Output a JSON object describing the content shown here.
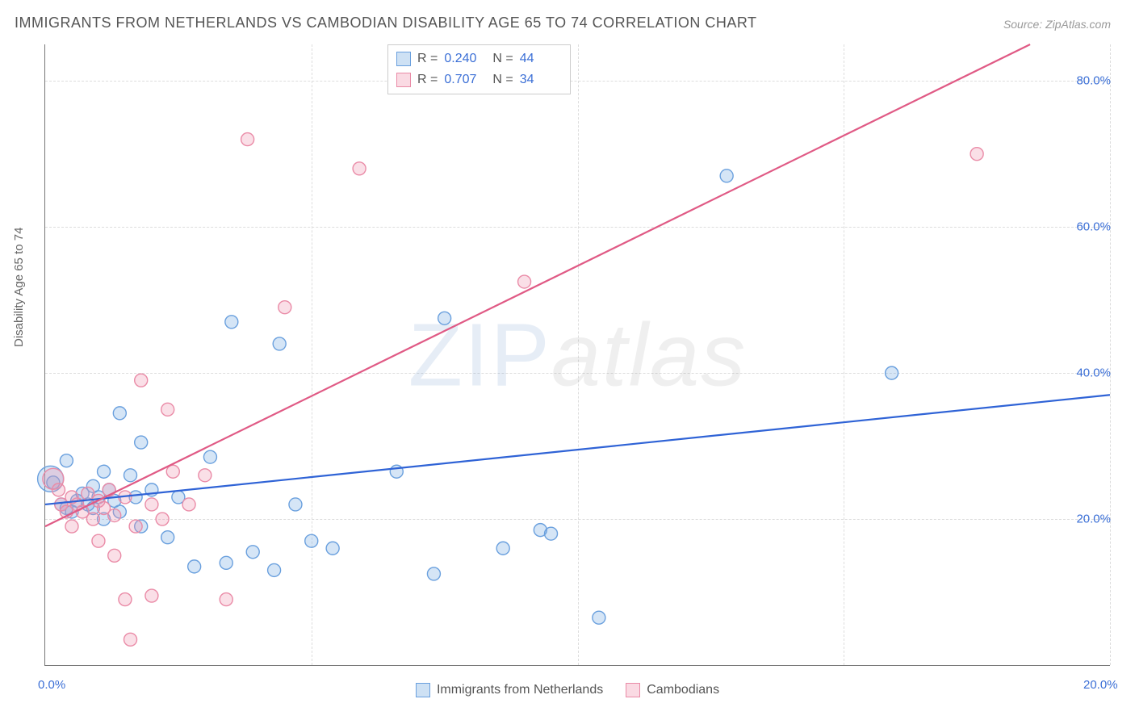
{
  "title": "IMMIGRANTS FROM NETHERLANDS VS CAMBODIAN DISABILITY AGE 65 TO 74 CORRELATION CHART",
  "source": "Source: ZipAtlas.com",
  "y_axis_label": "Disability Age 65 to 74",
  "watermark_a": "ZIP",
  "watermark_b": "atlas",
  "chart": {
    "type": "scatter",
    "xlim": [
      0,
      20
    ],
    "ylim": [
      0,
      85
    ],
    "x_ticks": [
      0,
      20
    ],
    "x_tick_labels": [
      "0.0%",
      "20.0%"
    ],
    "y_ticks": [
      20,
      40,
      60,
      80
    ],
    "y_tick_labels": [
      "20.0%",
      "40.0%",
      "60.0%",
      "80.0%"
    ],
    "x_vgrid": [
      5,
      10,
      15,
      20
    ],
    "background_color": "#ffffff",
    "grid_color": "#dddddd",
    "axis_color": "#777777",
    "marker_radius": 8,
    "marker_stroke_width": 1.4,
    "line_width": 2.2,
    "series": [
      {
        "name": "Immigrants from Netherlands",
        "fill": "rgba(116,168,224,0.30)",
        "stroke": "#6aa0de",
        "line_color": "#2f63d6",
        "r": 0.24,
        "n": 44,
        "fit_line": {
          "x1": 0,
          "y1": 22,
          "x2": 20,
          "y2": 37
        },
        "points": [
          {
            "x": 0.1,
            "y": 25.5,
            "r": 16
          },
          {
            "x": 0.15,
            "y": 25.0
          },
          {
            "x": 0.3,
            "y": 22.0
          },
          {
            "x": 0.4,
            "y": 21.5
          },
          {
            "x": 0.4,
            "y": 28.0
          },
          {
            "x": 0.5,
            "y": 21.0
          },
          {
            "x": 0.6,
            "y": 22.5
          },
          {
            "x": 0.7,
            "y": 23.5
          },
          {
            "x": 0.8,
            "y": 22.0
          },
          {
            "x": 0.9,
            "y": 21.5
          },
          {
            "x": 0.9,
            "y": 24.5
          },
          {
            "x": 1.0,
            "y": 23.0
          },
          {
            "x": 1.1,
            "y": 20.0
          },
          {
            "x": 1.1,
            "y": 26.5
          },
          {
            "x": 1.2,
            "y": 24.0
          },
          {
            "x": 1.3,
            "y": 22.5
          },
          {
            "x": 1.4,
            "y": 21.0
          },
          {
            "x": 1.4,
            "y": 34.5
          },
          {
            "x": 1.6,
            "y": 26.0
          },
          {
            "x": 1.7,
            "y": 23.0
          },
          {
            "x": 1.8,
            "y": 19.0
          },
          {
            "x": 1.8,
            "y": 30.5
          },
          {
            "x": 2.0,
            "y": 24.0
          },
          {
            "x": 2.3,
            "y": 17.5
          },
          {
            "x": 2.5,
            "y": 23.0
          },
          {
            "x": 2.8,
            "y": 13.5
          },
          {
            "x": 3.1,
            "y": 28.5
          },
          {
            "x": 3.4,
            "y": 14.0
          },
          {
            "x": 3.5,
            "y": 47.0
          },
          {
            "x": 3.9,
            "y": 15.5
          },
          {
            "x": 4.3,
            "y": 13.0
          },
          {
            "x": 4.4,
            "y": 44.0
          },
          {
            "x": 4.7,
            "y": 22.0
          },
          {
            "x": 5.0,
            "y": 17.0
          },
          {
            "x": 5.4,
            "y": 16.0
          },
          {
            "x": 6.6,
            "y": 26.5
          },
          {
            "x": 7.3,
            "y": 12.5
          },
          {
            "x": 7.5,
            "y": 47.5
          },
          {
            "x": 8.6,
            "y": 16.0
          },
          {
            "x": 9.3,
            "y": 18.5
          },
          {
            "x": 9.5,
            "y": 18.0
          },
          {
            "x": 10.4,
            "y": 6.5
          },
          {
            "x": 12.8,
            "y": 67.0
          },
          {
            "x": 15.9,
            "y": 40.0
          }
        ]
      },
      {
        "name": "Cambodians",
        "fill": "rgba(240,150,175,0.30)",
        "stroke": "#ea8ba7",
        "line_color": "#e05a85",
        "r": 0.707,
        "n": 34,
        "fit_line": {
          "x1": 0,
          "y1": 19,
          "x2": 18.5,
          "y2": 85
        },
        "points": [
          {
            "x": 0.15,
            "y": 25.5,
            "r": 13
          },
          {
            "x": 0.25,
            "y": 24.0
          },
          {
            "x": 0.3,
            "y": 22.0
          },
          {
            "x": 0.4,
            "y": 21.0
          },
          {
            "x": 0.5,
            "y": 19.0
          },
          {
            "x": 0.5,
            "y": 23.0
          },
          {
            "x": 0.6,
            "y": 22.0
          },
          {
            "x": 0.7,
            "y": 21.0
          },
          {
            "x": 0.8,
            "y": 23.5
          },
          {
            "x": 0.9,
            "y": 20.0
          },
          {
            "x": 1.0,
            "y": 22.5
          },
          {
            "x": 1.0,
            "y": 17.0
          },
          {
            "x": 1.1,
            "y": 21.5
          },
          {
            "x": 1.2,
            "y": 24.0
          },
          {
            "x": 1.3,
            "y": 20.5
          },
          {
            "x": 1.3,
            "y": 15.0
          },
          {
            "x": 1.5,
            "y": 23.0
          },
          {
            "x": 1.5,
            "y": 9.0
          },
          {
            "x": 1.6,
            "y": 3.5
          },
          {
            "x": 1.7,
            "y": 19.0
          },
          {
            "x": 1.8,
            "y": 39.0
          },
          {
            "x": 2.0,
            "y": 22.0
          },
          {
            "x": 2.0,
            "y": 9.5
          },
          {
            "x": 2.2,
            "y": 20.0
          },
          {
            "x": 2.3,
            "y": 35.0
          },
          {
            "x": 2.4,
            "y": 26.5
          },
          {
            "x": 2.7,
            "y": 22.0
          },
          {
            "x": 3.0,
            "y": 26.0
          },
          {
            "x": 3.4,
            "y": 9.0
          },
          {
            "x": 3.8,
            "y": 72.0
          },
          {
            "x": 4.5,
            "y": 49.0
          },
          {
            "x": 5.9,
            "y": 68.0
          },
          {
            "x": 9.0,
            "y": 52.5
          },
          {
            "x": 17.5,
            "y": 70.0
          }
        ]
      }
    ]
  },
  "legend_top": {
    "r_label": "R =",
    "n_label": "N ="
  },
  "legend_bottom": {
    "items": [
      "Immigrants from Netherlands",
      "Cambodians"
    ]
  }
}
